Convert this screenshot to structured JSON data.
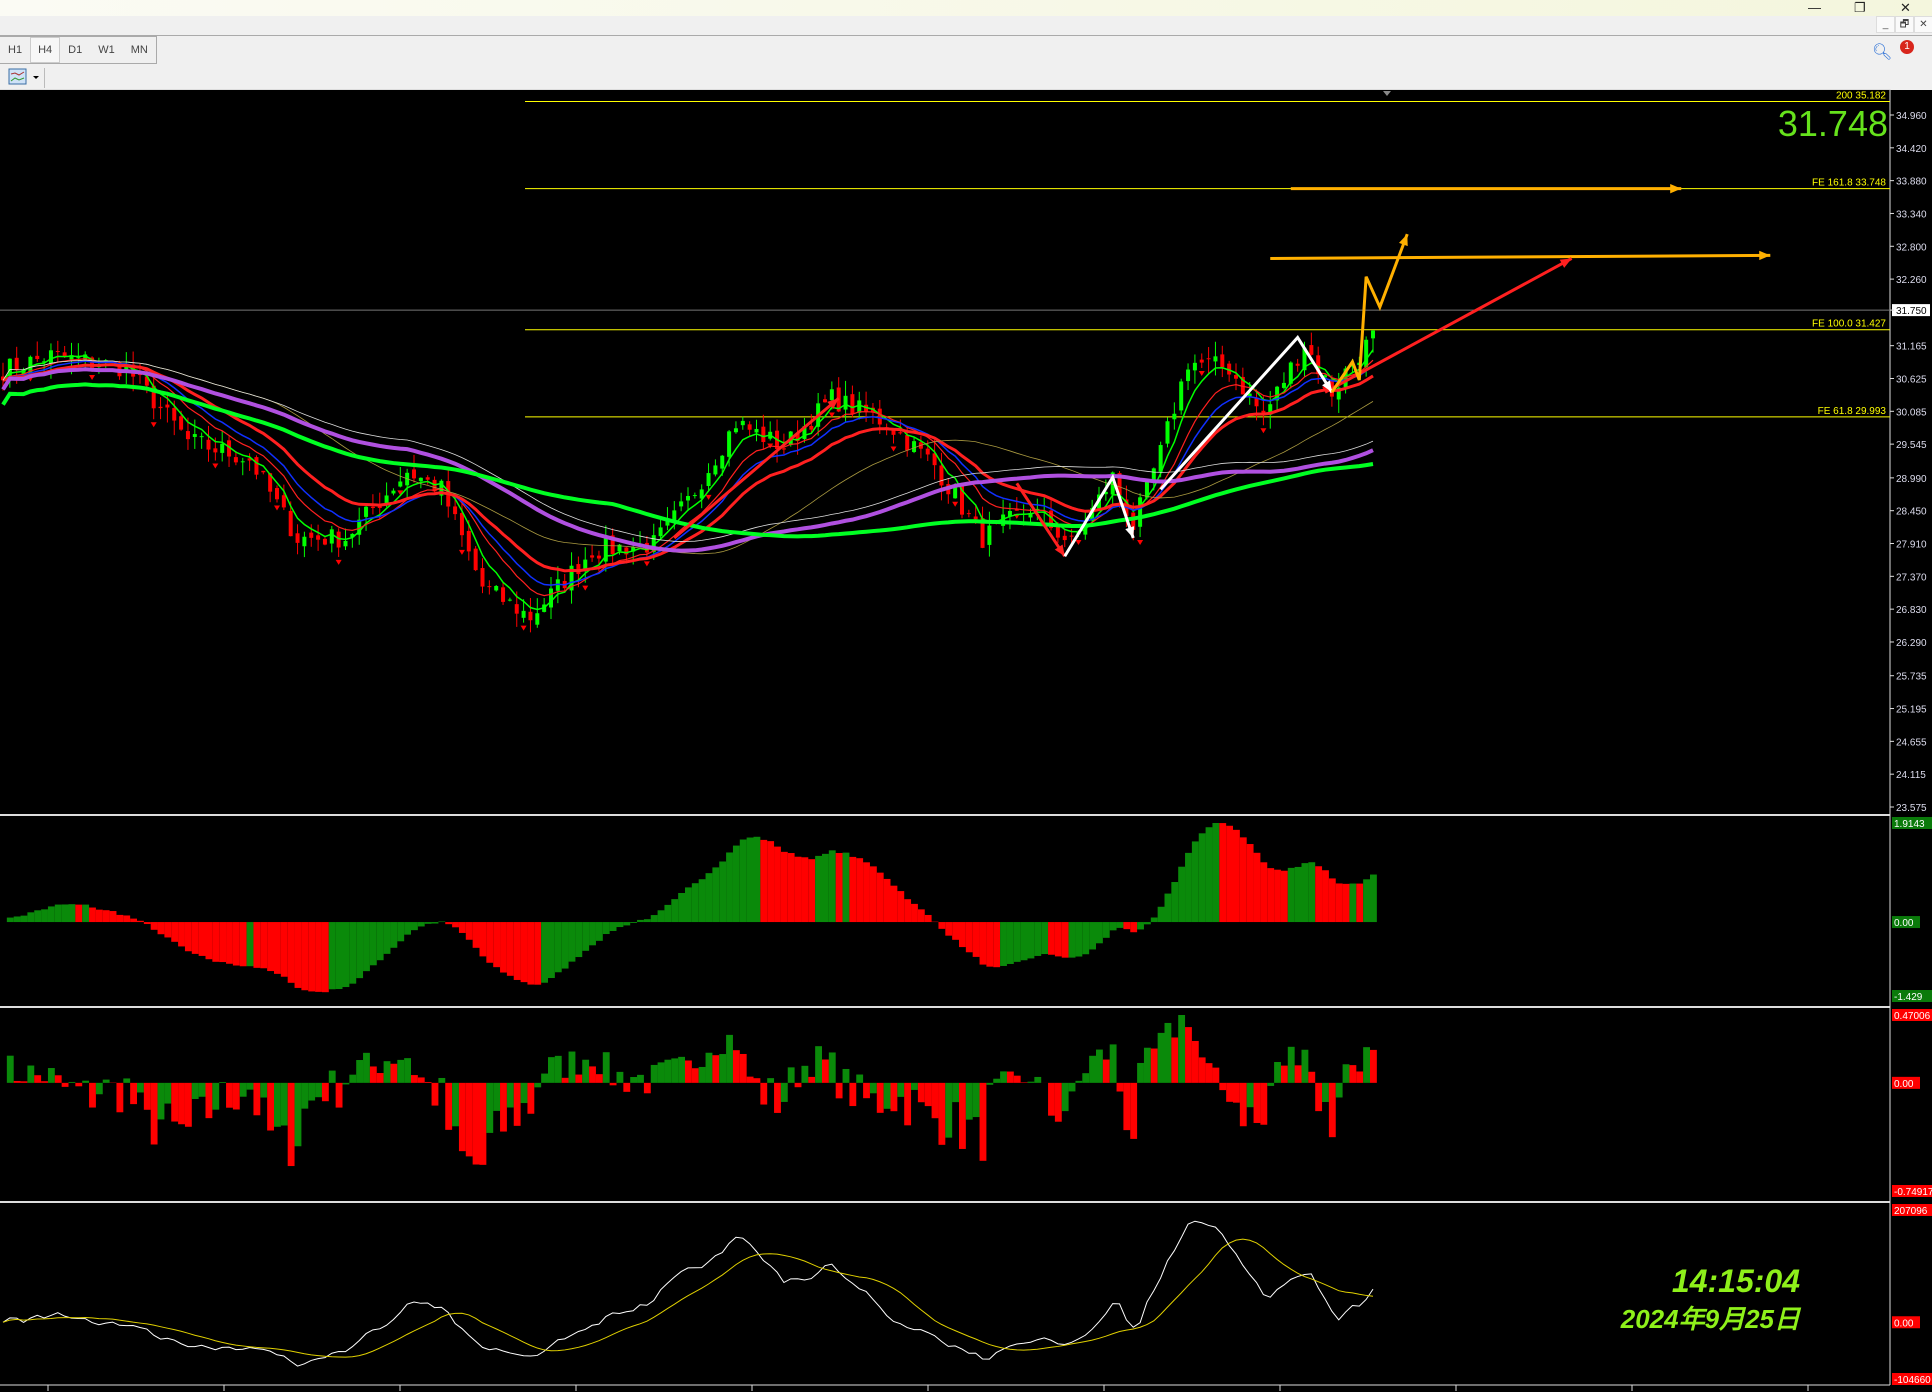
{
  "window": {
    "minimize": "—",
    "restore": "❐",
    "close": "✕"
  },
  "mdi": {
    "minimize": "_",
    "restore": "🗗",
    "close": "✕"
  },
  "toolbar": {
    "timeframes": [
      "H1",
      "H4",
      "D1",
      "W1",
      "MN"
    ],
    "active": "H4",
    "chart_icon": "indicator-chart-icon",
    "search_icon": "search-icon",
    "notification_count": "1"
  },
  "price": {
    "current": "31.748",
    "bid_label": "31.750"
  },
  "clock": {
    "time": "14:15:04",
    "date": "2024年9月25日"
  },
  "colors": {
    "bull": "#00ff00",
    "bear": "#ff0000",
    "fe_line": "#ffff00",
    "ma_fast": "#00ff00",
    "ma_red": "#ff2020",
    "ma_blue": "#1030ff",
    "ma_purple": "#b050e0",
    "ma_green_slow": "#00ff22",
    "arrow_orange": "#ffb000",
    "arrow_white": "#ffffff"
  },
  "chart_data": [
    {
      "type": "candlestick",
      "ylim": [
        23.575,
        35.3
      ],
      "yticks": [
        "34.960",
        "34.420",
        "33.880",
        "33.340",
        "32.800",
        "32.260",
        "31.750",
        "31.165",
        "30.625",
        "30.085",
        "29.545",
        "28.990",
        "28.450",
        "27.910",
        "27.370",
        "26.830",
        "26.290",
        "25.735",
        "25.195",
        "24.655",
        "24.115",
        "23.575"
      ],
      "close_path": [
        [
          0,
          30.77
        ],
        [
          7,
          31.0
        ],
        [
          18,
          30.8
        ],
        [
          27,
          29.6
        ],
        [
          36,
          29.3
        ],
        [
          43,
          28.0
        ],
        [
          50,
          28.0
        ],
        [
          59,
          29.1
        ],
        [
          64,
          28.8
        ],
        [
          70,
          27.2
        ],
        [
          77,
          26.7
        ],
        [
          86,
          27.8
        ],
        [
          95,
          27.9
        ],
        [
          100,
          28.6
        ],
        [
          107,
          29.9
        ],
        [
          114,
          29.5
        ],
        [
          121,
          30.3
        ],
        [
          129,
          29.9
        ],
        [
          136,
          29.2
        ],
        [
          143,
          28.0
        ],
        [
          150,
          28.5
        ],
        [
          156,
          27.9
        ],
        [
          162,
          29.0
        ],
        [
          165,
          28.2
        ],
        [
          169,
          29.4
        ],
        [
          173,
          30.9
        ],
        [
          179,
          30.8
        ],
        [
          184,
          30.0
        ],
        [
          190,
          31.2
        ],
        [
          194,
          30.4
        ],
        [
          197,
          30.9
        ],
        [
          200,
          31.3
        ]
      ],
      "levels": [
        {
          "label": "200",
          "value": "35.182"
        },
        {
          "label": "FE 161.8",
          "value": "33.748"
        },
        {
          "label": "FE 100.0",
          "value": "31.427"
        },
        {
          "label": "FE 61.8",
          "value": "29.993"
        }
      ],
      "annotations": [
        {
          "color": "arrow_orange",
          "points": [
            [
              188,
              33.748
            ],
            [
              245,
              33.748
            ]
          ]
        },
        {
          "color": "arrow_orange",
          "points": [
            [
              185,
              32.6
            ],
            [
              258,
              32.65
            ]
          ]
        },
        {
          "color": "ma_red",
          "points": [
            [
              193,
              30.4
            ],
            [
              229,
              32.6
            ]
          ]
        },
        {
          "color": "ma_red",
          "points": [
            [
              98,
              28.0
            ],
            [
              122,
              30.3
            ]
          ]
        },
        {
          "color": "ma_red",
          "points": [
            [
              148,
              28.9
            ],
            [
              155,
              27.7
            ]
          ]
        },
        {
          "color": "arrow_white",
          "points": [
            [
              155,
              27.7
            ],
            [
              162,
              29.0
            ],
            [
              165,
              28.0
            ]
          ]
        },
        {
          "color": "arrow_white",
          "points": [
            [
              169,
              28.8
            ],
            [
              189,
              31.3
            ],
            [
              194,
              30.4
            ]
          ]
        },
        {
          "color": "arrow_orange",
          "points": [
            [
              194,
              30.4
            ],
            [
              197,
              30.9
            ],
            [
              198,
              30.6
            ],
            [
              199,
              32.3
            ],
            [
              201,
              31.8
            ],
            [
              205,
              33.0
            ]
          ]
        }
      ]
    },
    {
      "type": "histogram",
      "ylim": [
        -1.429,
        1.9143
      ],
      "ticks": [
        "1.9143",
        "0.00",
        "-1.429"
      ]
    },
    {
      "type": "histogram",
      "ylim": [
        -0.74917,
        0.47006
      ],
      "ticks": [
        "0.47006",
        "0.00",
        "-0.74917"
      ]
    },
    {
      "type": "line",
      "ylim": [
        -104660,
        207096
      ],
      "ticks": [
        "207096",
        "0.00",
        "-104660"
      ]
    }
  ]
}
